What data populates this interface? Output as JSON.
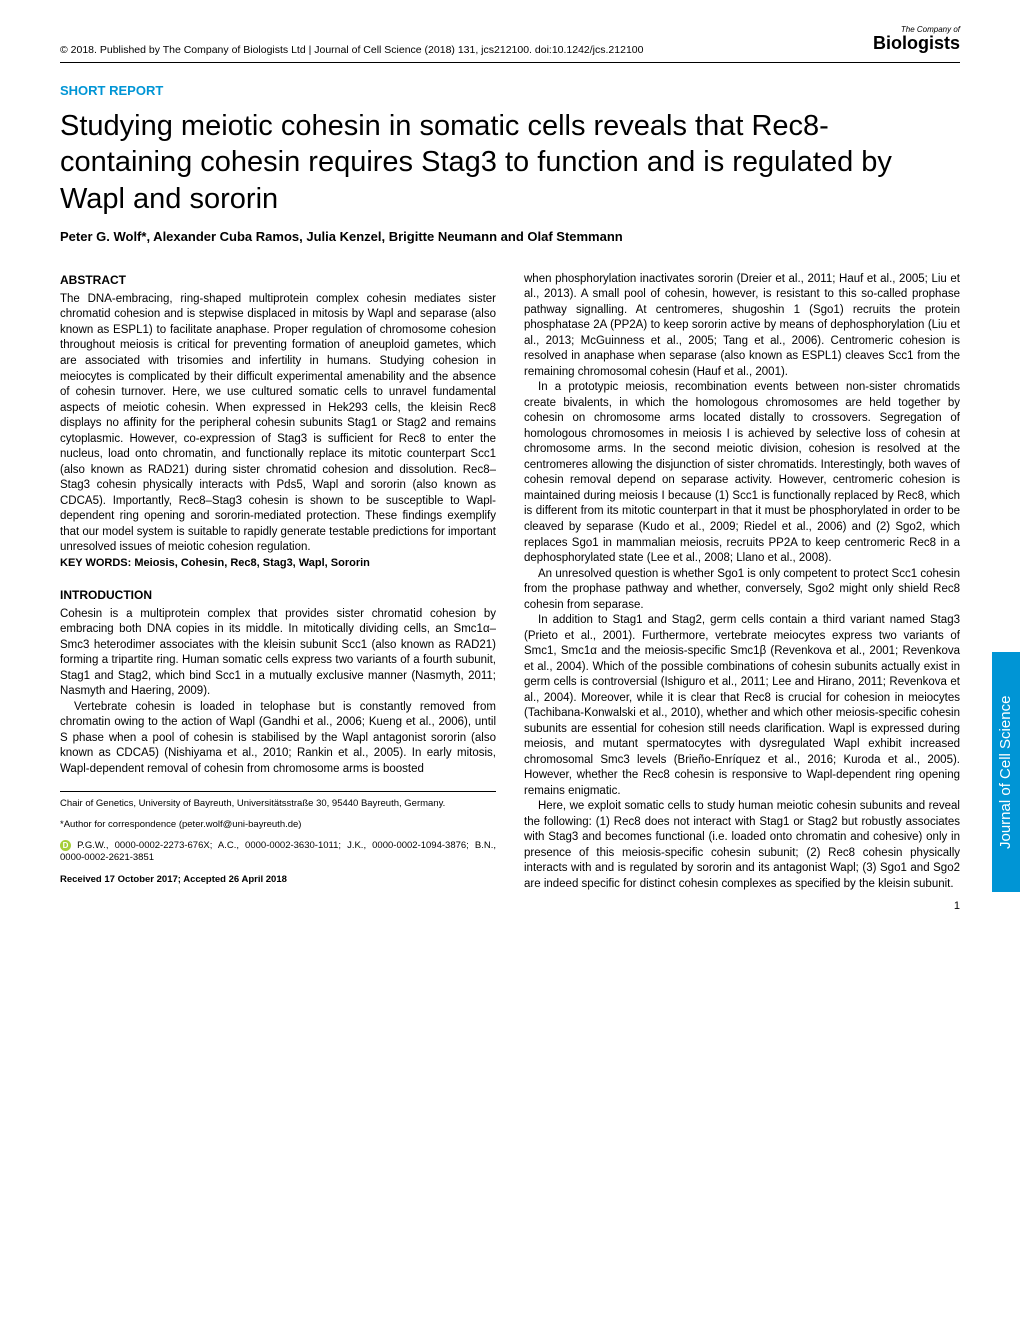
{
  "header": {
    "citation": "© 2018. Published by The Company of Biologists Ltd | Journal of Cell Science (2018) 131, jcs212100. doi:10.1242/jcs.212100",
    "logo_top": "The Company of",
    "logo_main": "Biologists"
  },
  "section_label": "SHORT REPORT",
  "title": "Studying meiotic cohesin in somatic cells reveals that Rec8-containing cohesin requires Stag3 to function and is regulated by Wapl and sororin",
  "authors": "Peter G. Wolf*, Alexander Cuba Ramos, Julia Kenzel, Brigitte Neumann and Olaf Stemmann",
  "abstract": {
    "heading": "ABSTRACT",
    "text": "The DNA-embracing, ring-shaped multiprotein complex cohesin mediates sister chromatid cohesion and is stepwise displaced in mitosis by Wapl and separase (also known as ESPL1) to facilitate anaphase. Proper regulation of chromosome cohesion throughout meiosis is critical for preventing formation of aneuploid gametes, which are associated with trisomies and infertility in humans. Studying cohesion in meiocytes is complicated by their difficult experimental amenability and the absence of cohesin turnover. Here, we use cultured somatic cells to unravel fundamental aspects of meiotic cohesin. When expressed in Hek293 cells, the kleisin Rec8 displays no affinity for the peripheral cohesin subunits Stag1 or Stag2 and remains cytoplasmic. However, co-expression of Stag3 is sufficient for Rec8 to enter the nucleus, load onto chromatin, and functionally replace its mitotic counterpart Scc1 (also known as RAD21) during sister chromatid cohesion and dissolution. Rec8–Stag3 cohesin physically interacts with Pds5, Wapl and sororin (also known as CDCA5). Importantly, Rec8–Stag3 cohesin is shown to be susceptible to Wapl-dependent ring opening and sororin-mediated protection. These findings exemplify that our model system is suitable to rapidly generate testable predictions for important unresolved issues of meiotic cohesion regulation."
  },
  "keywords": "KEY WORDS: Meiosis, Cohesin, Rec8, Stag3, Wapl, Sororin",
  "introduction": {
    "heading": "INTRODUCTION",
    "p1": "Cohesin is a multiprotein complex that provides sister chromatid cohesion by embracing both DNA copies in its middle. In mitotically dividing cells, an Smc1α–Smc3 heterodimer associates with the kleisin subunit Scc1 (also known as RAD21) forming a tripartite ring. Human somatic cells express two variants of a fourth subunit, Stag1 and Stag2, which bind Scc1 in a mutually exclusive manner (Nasmyth, 2011; Nasmyth and Haering, 2009).",
    "p2": "Vertebrate cohesin is loaded in telophase but is constantly removed from chromatin owing to the action of Wapl (Gandhi et al., 2006; Kueng et al., 2006), until S phase when a pool of cohesin is stabilised by the Wapl antagonist sororin (also known as CDCA5) (Nishiyama et al., 2010; Rankin et al., 2005). In early mitosis, Wapl-dependent removal of cohesin from chromosome arms is boosted"
  },
  "right_col": {
    "p1": "when phosphorylation inactivates sororin (Dreier et al., 2011; Hauf et al., 2005; Liu et al., 2013). A small pool of cohesin, however, is resistant to this so-called prophase pathway signalling. At centromeres, shugoshin 1 (Sgo1) recruits the protein phosphatase 2A (PP2A) to keep sororin active by means of dephosphorylation (Liu et al., 2013; McGuinness et al., 2005; Tang et al., 2006). Centromeric cohesion is resolved in anaphase when separase (also known as ESPL1) cleaves Scc1 from the remaining chromosomal cohesin (Hauf et al., 2001).",
    "p2": "In a prototypic meiosis, recombination events between non-sister chromatids create bivalents, in which the homologous chromosomes are held together by cohesin on chromosome arms located distally to crossovers. Segregation of homologous chromosomes in meiosis I is achieved by selective loss of cohesin at chromosome arms. In the second meiotic division, cohesion is resolved at the centromeres allowing the disjunction of sister chromatids. Interestingly, both waves of cohesin removal depend on separase activity. However, centromeric cohesion is maintained during meiosis I because (1) Scc1 is functionally replaced by Rec8, which is different from its mitotic counterpart in that it must be phosphorylated in order to be cleaved by separase (Kudo et al., 2009; Riedel et al., 2006) and (2) Sgo2, which replaces Sgo1 in mammalian meiosis, recruits PP2A to keep centromeric Rec8 in a dephosphorylated state (Lee et al., 2008; Llano et al., 2008).",
    "p3": "An unresolved question is whether Sgo1 is only competent to protect Scc1 cohesin from the prophase pathway and whether, conversely, Sgo2 might only shield Rec8 cohesin from separase.",
    "p4": "In addition to Stag1 and Stag2, germ cells contain a third variant named Stag3 (Prieto et al., 2001). Furthermore, vertebrate meiocytes express two variants of Smc1, Smc1α and the meiosis-specific Smc1β (Revenkova et al., 2001; Revenkova et al., 2004). Which of the possible combinations of cohesin subunits actually exist in germ cells is controversial (Ishiguro et al., 2011; Lee and Hirano, 2011; Revenkova et al., 2004). Moreover, while it is clear that Rec8 is crucial for cohesion in meiocytes (Tachibana-Konwalski et al., 2010), whether and which other meiosis-specific cohesin subunits are essential for cohesion still needs clarification. Wapl is expressed during meiosis, and mutant spermatocytes with dysregulated Wapl exhibit increased chromosomal Smc3 levels (Brieño-Enríquez et al., 2016; Kuroda et al., 2005). However, whether the Rec8 cohesin is responsive to Wapl-dependent ring opening remains enigmatic.",
    "p5": "Here, we exploit somatic cells to study human meiotic cohesin subunits and reveal the following: (1) Rec8 does not interact with Stag1 or Stag2 but robustly associates with Stag3 and becomes functional (i.e. loaded onto chromatin and cohesive) only in presence of this meiosis-specific cohesin subunit; (2) Rec8 cohesin physically interacts with and is regulated by sororin and its antagonist Wapl; (3) Sgo1 and Sgo2 are indeed specific for distinct cohesin complexes as specified by the kleisin subunit."
  },
  "footer": {
    "affiliation": "Chair of Genetics, University of Bayreuth, Universitätsstraße 30, 95440 Bayreuth, Germany.",
    "correspondence": "*Author for correspondence (peter.wolf@uni-bayreuth.de)",
    "orcid": "P.G.W., 0000-0002-2273-676X; A.C., 0000-0002-3630-1011; J.K., 0000-0002-1094-3876; B.N., 0000-0002-2621-3851",
    "dates": "Received 17 October 2017; Accepted 26 April 2018"
  },
  "side_tab": "Journal of Cell Science",
  "page_number": "1",
  "colors": {
    "accent": "#0095d5",
    "orcid_green": "#a6ce39"
  }
}
